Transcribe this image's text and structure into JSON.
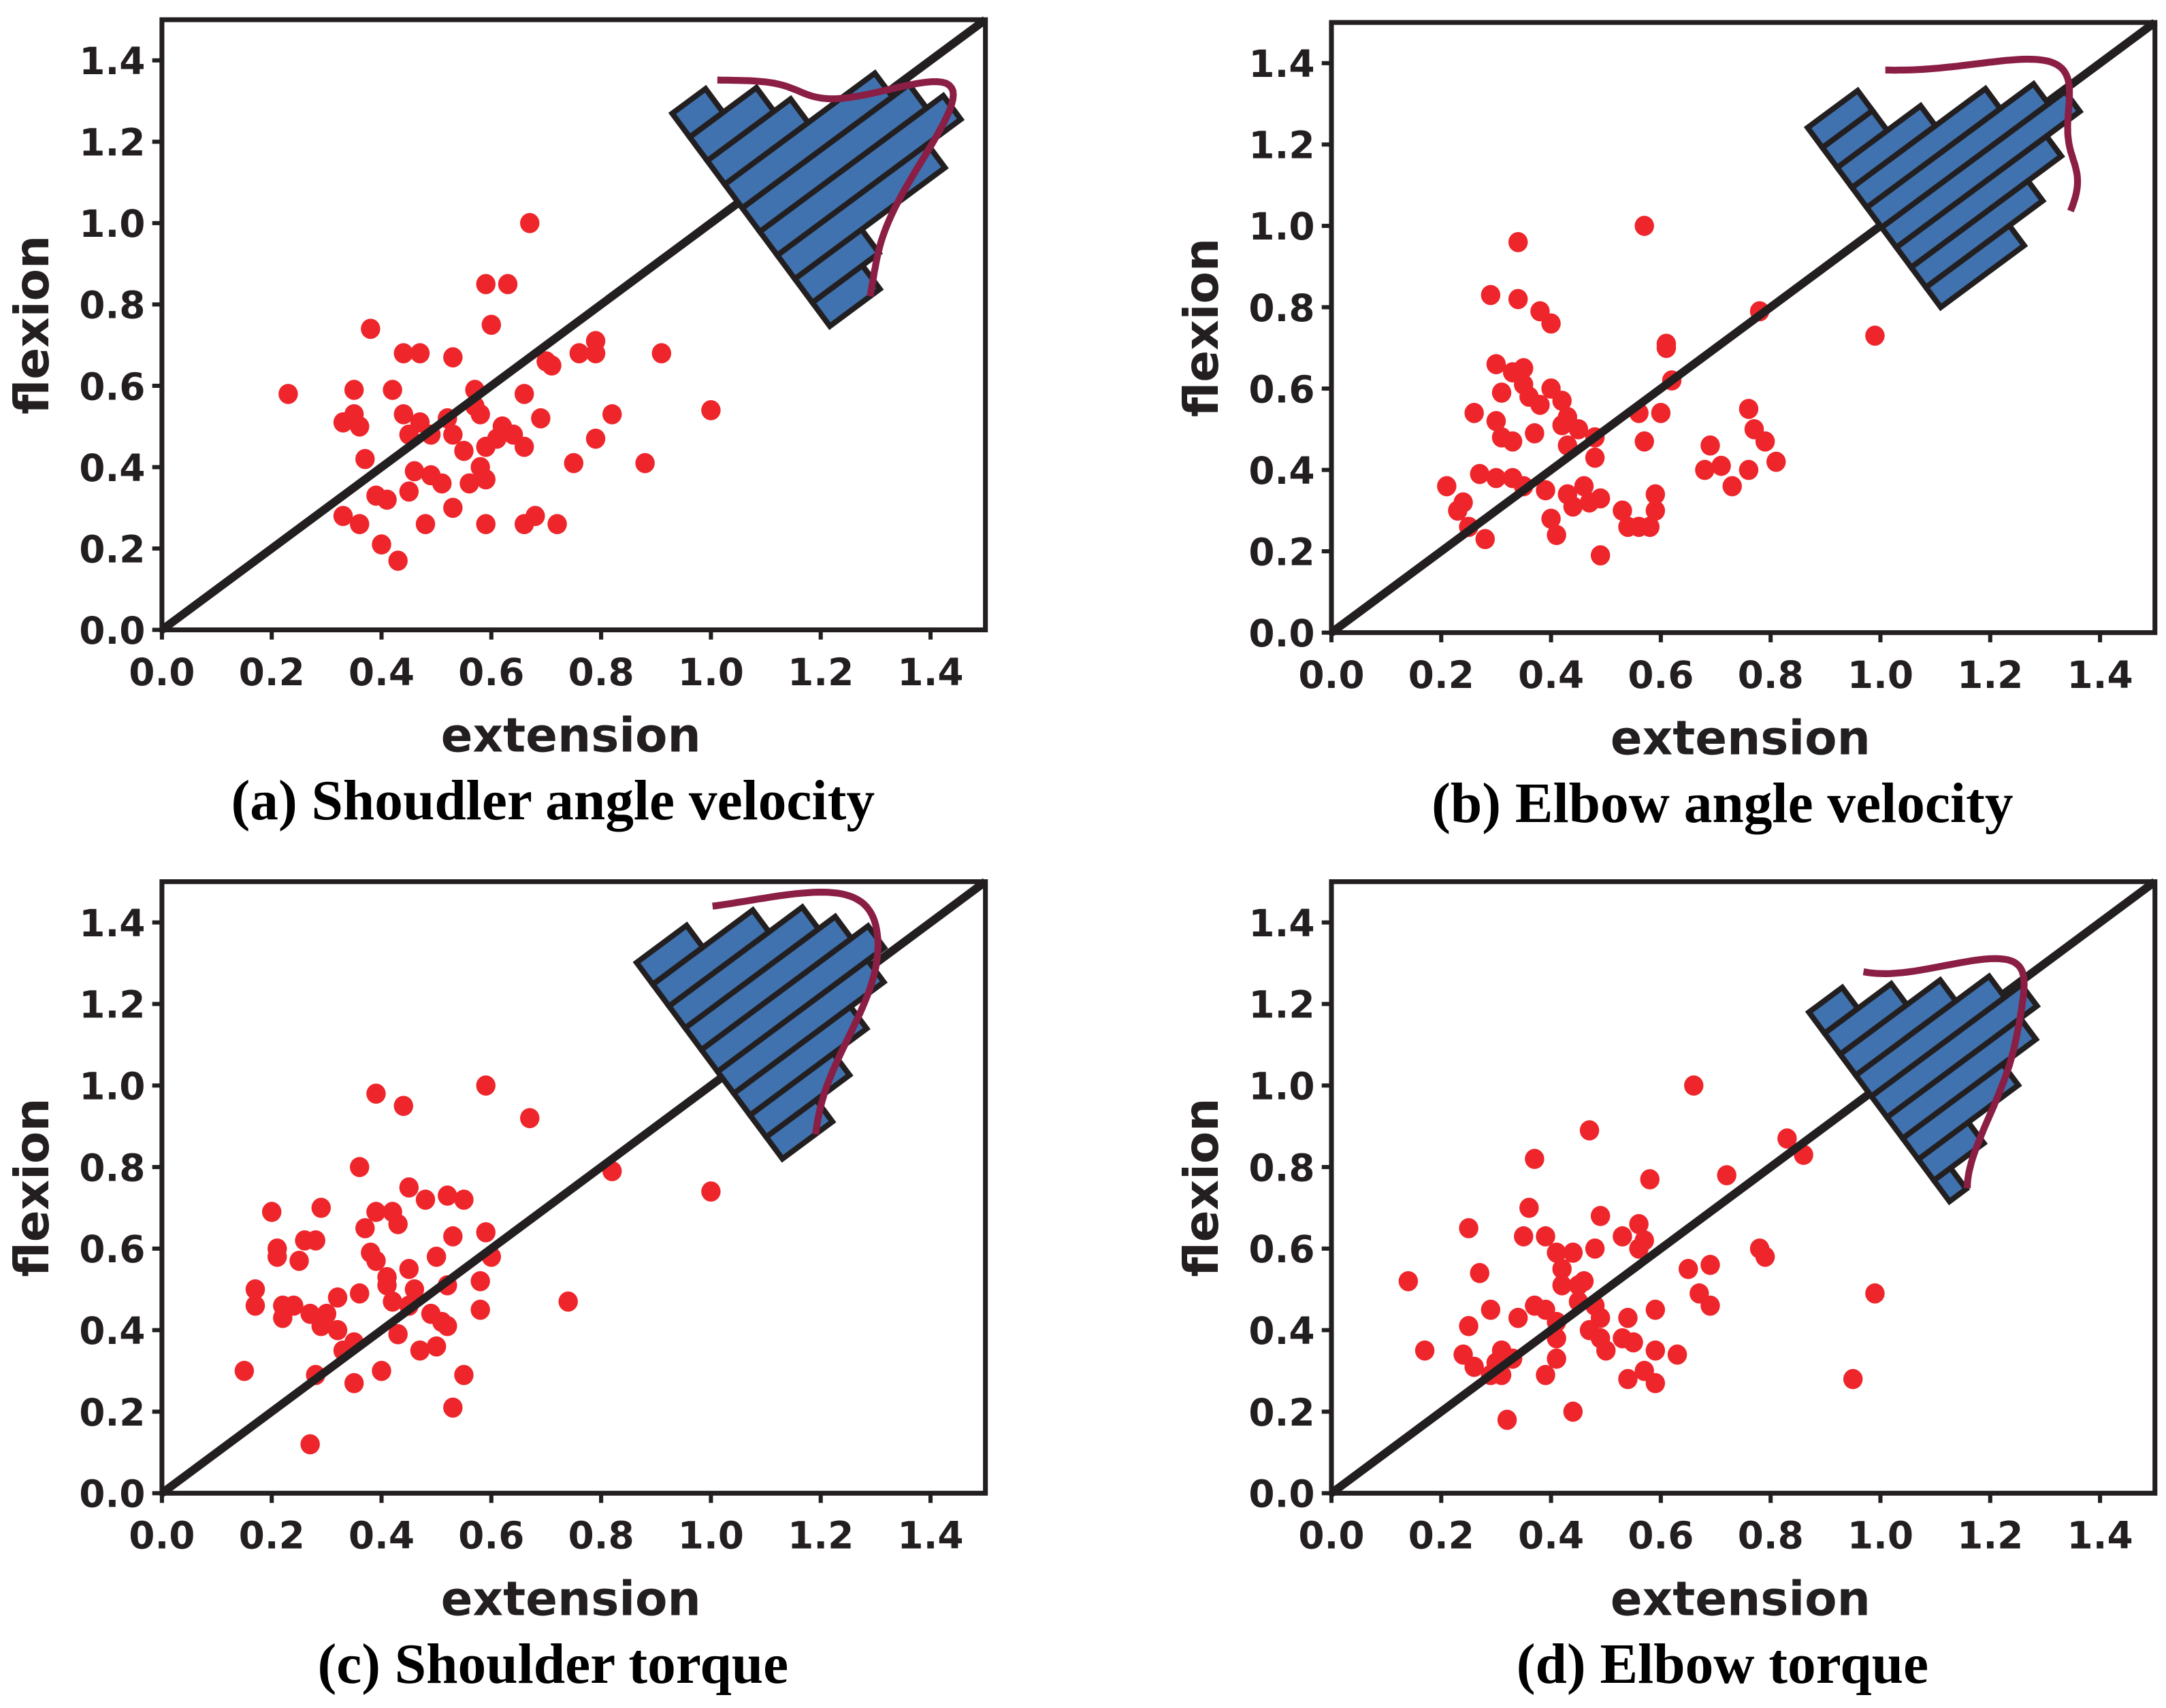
{
  "colors": {
    "points": "#ee262b",
    "bars": "#3f72af",
    "edges": "#231f20",
    "kde": "#8b1e45"
  },
  "chart_data": [
    {
      "type": "scatter",
      "title": "(a) Shoudler angle velocity",
      "xlabel": "extension",
      "ylabel": "flexion",
      "xlim": [
        0,
        1.5
      ],
      "ylim": [
        0,
        1.5
      ],
      "xticks": [
        "0.0",
        "0.2",
        "0.4",
        "0.6",
        "0.8",
        "1.0",
        "1.2",
        "1.4"
      ],
      "yticks": [
        "0.0",
        "0.2",
        "0.4",
        "0.6",
        "0.8",
        "1.0",
        "1.2",
        "1.4"
      ],
      "reference_line": "y = x",
      "points": [
        [
          0.23,
          0.58
        ],
        [
          0.67,
          1.0
        ],
        [
          0.59,
          0.85
        ],
        [
          0.63,
          0.85
        ],
        [
          0.6,
          0.75
        ],
        [
          0.38,
          0.74
        ],
        [
          0.44,
          0.68
        ],
        [
          0.47,
          0.68
        ],
        [
          0.53,
          0.67
        ],
        [
          0.79,
          0.71
        ],
        [
          0.76,
          0.68
        ],
        [
          0.79,
          0.68
        ],
        [
          0.91,
          0.68
        ],
        [
          0.7,
          0.66
        ],
        [
          0.71,
          0.65
        ],
        [
          0.35,
          0.59
        ],
        [
          0.42,
          0.59
        ],
        [
          0.57,
          0.59
        ],
        [
          0.66,
          0.58
        ],
        [
          1.0,
          0.54
        ],
        [
          0.82,
          0.53
        ],
        [
          0.35,
          0.53
        ],
        [
          0.33,
          0.51
        ],
        [
          0.36,
          0.5
        ],
        [
          0.44,
          0.53
        ],
        [
          0.47,
          0.51
        ],
        [
          0.52,
          0.52
        ],
        [
          0.57,
          0.55
        ],
        [
          0.58,
          0.53
        ],
        [
          0.62,
          0.5
        ],
        [
          0.69,
          0.52
        ],
        [
          0.61,
          0.47
        ],
        [
          0.59,
          0.45
        ],
        [
          0.64,
          0.48
        ],
        [
          0.66,
          0.45
        ],
        [
          0.55,
          0.44
        ],
        [
          0.45,
          0.48
        ],
        [
          0.49,
          0.48
        ],
        [
          0.53,
          0.48
        ],
        [
          0.37,
          0.42
        ],
        [
          0.79,
          0.47
        ],
        [
          0.75,
          0.41
        ],
        [
          0.88,
          0.41
        ],
        [
          0.58,
          0.4
        ],
        [
          0.59,
          0.37
        ],
        [
          0.56,
          0.36
        ],
        [
          0.46,
          0.39
        ],
        [
          0.49,
          0.38
        ],
        [
          0.51,
          0.36
        ],
        [
          0.39,
          0.33
        ],
        [
          0.45,
          0.34
        ],
        [
          0.41,
          0.32
        ],
        [
          0.53,
          0.3
        ],
        [
          0.48,
          0.26
        ],
        [
          0.33,
          0.28
        ],
        [
          0.36,
          0.26
        ],
        [
          0.59,
          0.26
        ],
        [
          0.68,
          0.28
        ],
        [
          0.66,
          0.26
        ],
        [
          0.72,
          0.26
        ],
        [
          0.4,
          0.21
        ],
        [
          0.43,
          0.17
        ]
      ],
      "difference_histogram": {
        "anchor": 1.05,
        "bin_edges": [
          -0.47,
          -0.38,
          -0.29,
          -0.2,
          -0.11,
          -0.02,
          0.07,
          0.16,
          0.25,
          0.34
        ],
        "counts": [
          3,
          4,
          9,
          11,
          10,
          9,
          5,
          4,
          2
        ]
      }
    },
    {
      "type": "scatter",
      "title": "(b) Elbow angle velocity",
      "xlabel": "extension",
      "ylabel": "flexion",
      "xlim": [
        0,
        1.5
      ],
      "ylim": [
        0,
        1.5
      ],
      "xticks": [
        "0.0",
        "0.2",
        "0.4",
        "0.6",
        "0.8",
        "1.0",
        "1.2",
        "1.4"
      ],
      "yticks": [
        "0.0",
        "0.2",
        "0.4",
        "0.6",
        "0.8",
        "1.0",
        "1.2",
        "1.4"
      ],
      "reference_line": "y = x",
      "points": [
        [
          0.29,
          0.83
        ],
        [
          0.34,
          0.96
        ],
        [
          0.34,
          0.82
        ],
        [
          0.38,
          0.79
        ],
        [
          0.4,
          0.76
        ],
        [
          0.57,
          1.0
        ],
        [
          0.61,
          0.7
        ],
        [
          0.61,
          0.71
        ],
        [
          0.78,
          0.79
        ],
        [
          0.99,
          0.73
        ],
        [
          0.3,
          0.66
        ],
        [
          0.33,
          0.64
        ],
        [
          0.35,
          0.65
        ],
        [
          0.31,
          0.59
        ],
        [
          0.35,
          0.61
        ],
        [
          0.26,
          0.54
        ],
        [
          0.3,
          0.52
        ],
        [
          0.31,
          0.48
        ],
        [
          0.33,
          0.47
        ],
        [
          0.36,
          0.58
        ],
        [
          0.38,
          0.56
        ],
        [
          0.4,
          0.6
        ],
        [
          0.42,
          0.57
        ],
        [
          0.43,
          0.53
        ],
        [
          0.42,
          0.51
        ],
        [
          0.45,
          0.5
        ],
        [
          0.37,
          0.49
        ],
        [
          0.43,
          0.46
        ],
        [
          0.48,
          0.48
        ],
        [
          0.56,
          0.54
        ],
        [
          0.57,
          0.47
        ],
        [
          0.62,
          0.62
        ],
        [
          0.6,
          0.54
        ],
        [
          0.69,
          0.46
        ],
        [
          0.71,
          0.41
        ],
        [
          0.76,
          0.55
        ],
        [
          0.77,
          0.5
        ],
        [
          0.79,
          0.47
        ],
        [
          0.81,
          0.42
        ],
        [
          0.76,
          0.4
        ],
        [
          0.73,
          0.36
        ],
        [
          0.68,
          0.4
        ],
        [
          0.21,
          0.36
        ],
        [
          0.24,
          0.32
        ],
        [
          0.23,
          0.3
        ],
        [
          0.25,
          0.26
        ],
        [
          0.28,
          0.23
        ],
        [
          0.27,
          0.39
        ],
        [
          0.3,
          0.38
        ],
        [
          0.33,
          0.38
        ],
        [
          0.35,
          0.36
        ],
        [
          0.39,
          0.35
        ],
        [
          0.43,
          0.34
        ],
        [
          0.46,
          0.36
        ],
        [
          0.47,
          0.32
        ],
        [
          0.44,
          0.31
        ],
        [
          0.4,
          0.28
        ],
        [
          0.41,
          0.24
        ],
        [
          0.49,
          0.33
        ],
        [
          0.53,
          0.3
        ],
        [
          0.54,
          0.26
        ],
        [
          0.56,
          0.26
        ],
        [
          0.59,
          0.3
        ],
        [
          0.59,
          0.34
        ],
        [
          0.58,
          0.26
        ],
        [
          0.49,
          0.19
        ],
        [
          0.48,
          0.43
        ]
      ],
      "difference_histogram": {
        "anchor": 1.0,
        "bin_edges": [
          -0.31,
          -0.234,
          -0.158,
          -0.082,
          -0.006,
          0.07,
          0.146,
          0.222,
          0.298,
          0.374
        ],
        "counts": [
          5,
          7,
          9,
          11,
          10,
          8,
          5,
          3,
          3
        ]
      }
    },
    {
      "type": "scatter",
      "title": "(c) Shoulder torque",
      "xlabel": "extension",
      "ylabel": "flexion",
      "xlim": [
        0,
        1.5
      ],
      "ylim": [
        0,
        1.5
      ],
      "xticks": [
        "0.0",
        "0.2",
        "0.4",
        "0.6",
        "0.8",
        "1.0",
        "1.2",
        "1.4"
      ],
      "yticks": [
        "0.0",
        "0.2",
        "0.4",
        "0.6",
        "0.8",
        "1.0",
        "1.2",
        "1.4"
      ],
      "reference_line": "y = x",
      "points": [
        [
          0.59,
          1.0
        ],
        [
          0.39,
          0.98
        ],
        [
          0.44,
          0.95
        ],
        [
          0.67,
          0.92
        ],
        [
          0.36,
          0.8
        ],
        [
          0.82,
          0.79
        ],
        [
          1.0,
          0.74
        ],
        [
          0.45,
          0.75
        ],
        [
          0.48,
          0.72
        ],
        [
          0.52,
          0.73
        ],
        [
          0.55,
          0.72
        ],
        [
          0.2,
          0.69
        ],
        [
          0.29,
          0.7
        ],
        [
          0.39,
          0.69
        ],
        [
          0.42,
          0.69
        ],
        [
          0.37,
          0.65
        ],
        [
          0.43,
          0.66
        ],
        [
          0.59,
          0.64
        ],
        [
          0.53,
          0.63
        ],
        [
          0.26,
          0.62
        ],
        [
          0.28,
          0.62
        ],
        [
          0.21,
          0.6
        ],
        [
          0.21,
          0.58
        ],
        [
          0.25,
          0.57
        ],
        [
          0.38,
          0.59
        ],
        [
          0.39,
          0.57
        ],
        [
          0.5,
          0.58
        ],
        [
          0.6,
          0.58
        ],
        [
          0.45,
          0.55
        ],
        [
          0.41,
          0.53
        ],
        [
          0.17,
          0.5
        ],
        [
          0.41,
          0.51
        ],
        [
          0.46,
          0.5
        ],
        [
          0.58,
          0.52
        ],
        [
          0.52,
          0.51
        ],
        [
          0.32,
          0.48
        ],
        [
          0.36,
          0.49
        ],
        [
          0.42,
          0.47
        ],
        [
          0.45,
          0.46
        ],
        [
          0.17,
          0.46
        ],
        [
          0.22,
          0.46
        ],
        [
          0.24,
          0.46
        ],
        [
          0.27,
          0.44
        ],
        [
          0.3,
          0.44
        ],
        [
          0.22,
          0.43
        ],
        [
          0.49,
          0.44
        ],
        [
          0.51,
          0.42
        ],
        [
          0.58,
          0.45
        ],
        [
          0.74,
          0.47
        ],
        [
          0.29,
          0.41
        ],
        [
          0.32,
          0.4
        ],
        [
          0.43,
          0.39
        ],
        [
          0.52,
          0.41
        ],
        [
          0.35,
          0.37
        ],
        [
          0.33,
          0.35
        ],
        [
          0.47,
          0.35
        ],
        [
          0.5,
          0.36
        ],
        [
          0.15,
          0.3
        ],
        [
          0.28,
          0.29
        ],
        [
          0.4,
          0.3
        ],
        [
          0.55,
          0.29
        ],
        [
          0.35,
          0.27
        ],
        [
          0.53,
          0.21
        ],
        [
          0.27,
          0.12
        ]
      ],
      "difference_histogram": {
        "anchor": 1.02,
        "bin_edges": [
          -0.31,
          -0.227,
          -0.144,
          -0.061,
          0.022,
          0.105,
          0.188,
          0.271,
          0.354,
          0.437
        ],
        "counts": [
          3,
          5,
          7,
          9,
          10,
          9,
          8,
          6,
          3
        ]
      }
    },
    {
      "type": "scatter",
      "title": "(d) Elbow torque",
      "xlabel": "extension",
      "ylabel": "flexion",
      "xlim": [
        0,
        1.5
      ],
      "ylim": [
        0,
        1.5
      ],
      "xticks": [
        "0.0",
        "0.2",
        "0.4",
        "0.6",
        "0.8",
        "1.0",
        "1.2",
        "1.4"
      ],
      "yticks": [
        "0.0",
        "0.2",
        "0.4",
        "0.6",
        "0.8",
        "1.0",
        "1.2",
        "1.4"
      ],
      "reference_line": "y = x",
      "points": [
        [
          0.66,
          1.0
        ],
        [
          0.47,
          0.89
        ],
        [
          0.83,
          0.87
        ],
        [
          0.86,
          0.83
        ],
        [
          0.37,
          0.82
        ],
        [
          0.58,
          0.77
        ],
        [
          0.72,
          0.78
        ],
        [
          0.36,
          0.7
        ],
        [
          0.49,
          0.68
        ],
        [
          0.25,
          0.65
        ],
        [
          0.39,
          0.63
        ],
        [
          0.35,
          0.63
        ],
        [
          0.56,
          0.66
        ],
        [
          0.57,
          0.62
        ],
        [
          0.53,
          0.63
        ],
        [
          0.41,
          0.59
        ],
        [
          0.44,
          0.59
        ],
        [
          0.48,
          0.6
        ],
        [
          0.56,
          0.6
        ],
        [
          0.78,
          0.6
        ],
        [
          0.79,
          0.58
        ],
        [
          0.14,
          0.52
        ],
        [
          0.27,
          0.54
        ],
        [
          0.42,
          0.55
        ],
        [
          0.46,
          0.52
        ],
        [
          0.65,
          0.55
        ],
        [
          0.69,
          0.56
        ],
        [
          0.42,
          0.51
        ],
        [
          0.45,
          0.51
        ],
        [
          0.67,
          0.49
        ],
        [
          0.99,
          0.49
        ],
        [
          0.29,
          0.45
        ],
        [
          0.37,
          0.46
        ],
        [
          0.39,
          0.45
        ],
        [
          0.45,
          0.47
        ],
        [
          0.48,
          0.46
        ],
        [
          0.49,
          0.43
        ],
        [
          0.69,
          0.46
        ],
        [
          0.34,
          0.43
        ],
        [
          0.41,
          0.42
        ],
        [
          0.59,
          0.45
        ],
        [
          0.54,
          0.43
        ],
        [
          0.25,
          0.41
        ],
        [
          0.47,
          0.4
        ],
        [
          0.49,
          0.38
        ],
        [
          0.53,
          0.38
        ],
        [
          0.55,
          0.37
        ],
        [
          0.41,
          0.38
        ],
        [
          0.17,
          0.35
        ],
        [
          0.24,
          0.34
        ],
        [
          0.26,
          0.31
        ],
        [
          0.31,
          0.35
        ],
        [
          0.3,
          0.32
        ],
        [
          0.33,
          0.33
        ],
        [
          0.41,
          0.33
        ],
        [
          0.5,
          0.35
        ],
        [
          0.59,
          0.35
        ],
        [
          0.63,
          0.34
        ],
        [
          0.29,
          0.29
        ],
        [
          0.31,
          0.29
        ],
        [
          0.39,
          0.29
        ],
        [
          0.57,
          0.3
        ],
        [
          0.54,
          0.28
        ],
        [
          0.59,
          0.27
        ],
        [
          0.95,
          0.28
        ],
        [
          0.44,
          0.2
        ],
        [
          0.32,
          0.18
        ]
      ],
      "difference_histogram": {
        "anchor": 0.98,
        "bin_edges": [
          -0.41,
          -0.33,
          -0.25,
          -0.17,
          -0.09,
          -0.01,
          0.07,
          0.15,
          0.23,
          0.31
        ],
        "counts": [
          1,
          3,
          6,
          8,
          9,
          8,
          6,
          4,
          2
        ]
      }
    }
  ]
}
